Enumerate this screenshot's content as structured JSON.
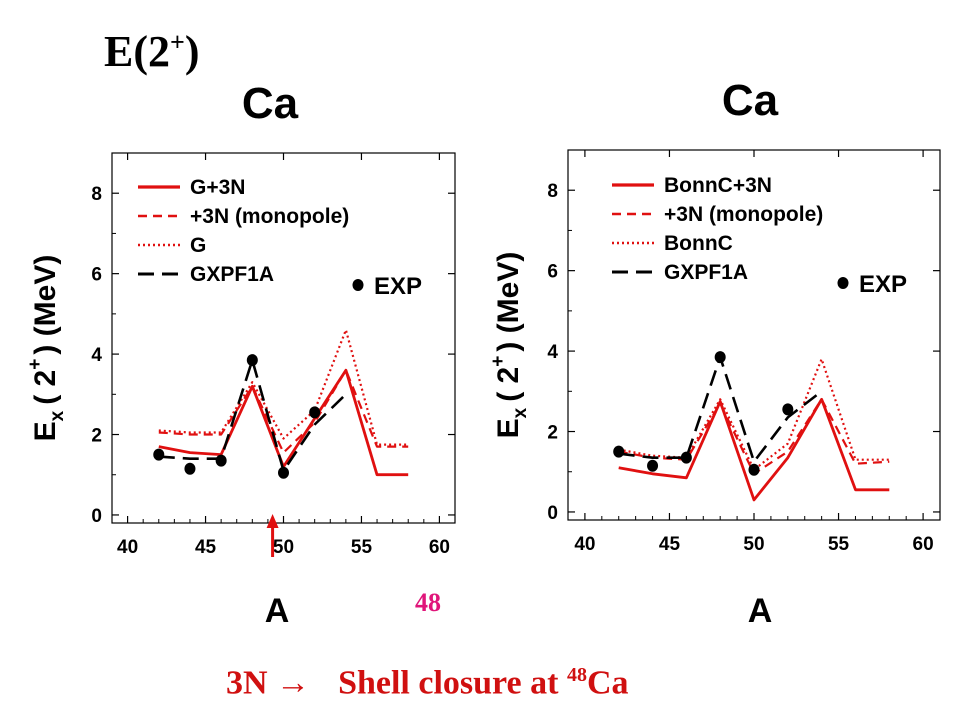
{
  "title": {
    "base": "E(2",
    "sup": "+",
    "close": ")"
  },
  "footer": {
    "left": "3N →",
    "right_pre": "Shell closure at ",
    "right_sup": "48",
    "right_post": "Ca"
  },
  "annotation": {
    "label": "48",
    "arrow_x": 49.3,
    "color": "#e0157a",
    "arrow_color": "#e01010"
  },
  "colors": {
    "red": "#e01010",
    "black": "#000000"
  },
  "chart_data": [
    {
      "type": "line",
      "element": "Ca",
      "xlabel": "A",
      "ylabel": {
        "main": "E",
        "sub": "x",
        "rest": "( 2",
        "sup": "+",
        "close": ") (MeV)"
      },
      "xlim": [
        39,
        61
      ],
      "ylim": [
        -0.2,
        9
      ],
      "xticks": [
        40,
        45,
        50,
        55,
        60
      ],
      "yticks": [
        0,
        2,
        4,
        6,
        8
      ],
      "grid": false,
      "legend_position": "top-left",
      "series": [
        {
          "name": "G+3N",
          "style": "solid",
          "color": "#e01010",
          "x": [
            42,
            44,
            46,
            48,
            50,
            52,
            54,
            56,
            58
          ],
          "y": [
            1.7,
            1.55,
            1.5,
            3.2,
            1.2,
            2.4,
            3.6,
            1.0,
            1.0
          ]
        },
        {
          "name": "+3N (monopole)",
          "style": "dashed",
          "color": "#e01010",
          "x": [
            42,
            44,
            46,
            48,
            50,
            52,
            54,
            56,
            58
          ],
          "y": [
            2.05,
            2.0,
            2.0,
            3.2,
            1.55,
            2.3,
            3.6,
            1.7,
            1.7
          ]
        },
        {
          "name": "G",
          "style": "dotted",
          "color": "#e01010",
          "x": [
            42,
            44,
            46,
            48,
            50,
            52,
            54,
            56,
            58
          ],
          "y": [
            2.1,
            2.05,
            2.05,
            3.3,
            1.9,
            2.6,
            4.6,
            1.75,
            1.75
          ]
        },
        {
          "name": "GXPF1A",
          "style": "longdash",
          "color": "#000000",
          "x": [
            42,
            44,
            46,
            48,
            50,
            52,
            54
          ],
          "y": [
            1.45,
            1.4,
            1.4,
            3.85,
            1.1,
            2.25,
            3.0
          ]
        }
      ],
      "exp": {
        "name": "EXP",
        "x": [
          42,
          44,
          46,
          48,
          50,
          52
        ],
        "y": [
          1.5,
          1.15,
          1.35,
          3.85,
          1.05,
          2.55
        ]
      }
    },
    {
      "type": "line",
      "element": "Ca",
      "xlabel": "A",
      "ylabel": {
        "main": "E",
        "sub": "x",
        "rest": "( 2",
        "sup": "+",
        "close": ") (MeV)"
      },
      "xlim": [
        39,
        61
      ],
      "ylim": [
        -0.2,
        9
      ],
      "xticks": [
        40,
        45,
        50,
        55,
        60
      ],
      "yticks": [
        0,
        2,
        4,
        6,
        8
      ],
      "grid": false,
      "legend_position": "top-left",
      "series": [
        {
          "name": "BonnC+3N",
          "style": "solid",
          "color": "#e01010",
          "x": [
            42,
            44,
            46,
            48,
            50,
            52,
            54,
            56,
            58
          ],
          "y": [
            1.1,
            0.95,
            0.85,
            2.75,
            0.3,
            1.35,
            2.8,
            0.55,
            0.55
          ]
        },
        {
          "name": "+3N (monopole)",
          "style": "dashed",
          "color": "#e01010",
          "x": [
            42,
            44,
            46,
            48,
            50,
            52,
            54,
            56,
            58
          ],
          "y": [
            1.5,
            1.35,
            1.3,
            2.7,
            0.95,
            1.5,
            2.8,
            1.2,
            1.25
          ]
        },
        {
          "name": "BonnC",
          "style": "dotted",
          "color": "#e01010",
          "x": [
            42,
            44,
            46,
            48,
            50,
            52,
            54,
            56,
            58
          ],
          "y": [
            1.55,
            1.4,
            1.35,
            2.8,
            1.05,
            1.7,
            3.8,
            1.3,
            1.3
          ]
        },
        {
          "name": "GXPF1A",
          "style": "longdash",
          "color": "#000000",
          "x": [
            42,
            44,
            46,
            48,
            50,
            52,
            54
          ],
          "y": [
            1.45,
            1.35,
            1.35,
            3.85,
            1.25,
            2.35,
            3.0
          ]
        }
      ],
      "exp": {
        "name": "EXP",
        "x": [
          42,
          44,
          46,
          48,
          50,
          52
        ],
        "y": [
          1.5,
          1.15,
          1.35,
          3.85,
          1.05,
          2.55
        ]
      }
    }
  ]
}
